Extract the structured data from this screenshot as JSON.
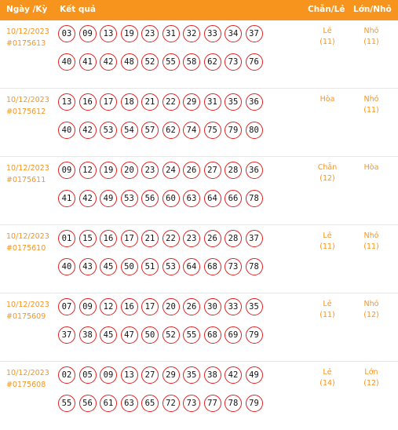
{
  "header": {
    "date_label": "Ngày /Kỳ",
    "result_label": "Kết quả",
    "even_odd_label": "Chẵn/Lẻ",
    "big_small_label": "Lớn/Nhỏ"
  },
  "rows": [
    {
      "date": "10/12/2023",
      "draw": "#0175613",
      "numbers_1": [
        "03",
        "09",
        "13",
        "19",
        "23",
        "31",
        "32",
        "33",
        "34",
        "37"
      ],
      "numbers_2": [
        "40",
        "41",
        "42",
        "48",
        "52",
        "55",
        "58",
        "62",
        "73",
        "76"
      ],
      "even_odd": "Lẻ",
      "even_odd_count": "(11)",
      "big_small": "Nhỏ",
      "big_small_count": "(11)"
    },
    {
      "date": "10/12/2023",
      "draw": "#0175612",
      "numbers_1": [
        "13",
        "16",
        "17",
        "18",
        "21",
        "22",
        "29",
        "31",
        "35",
        "36"
      ],
      "numbers_2": [
        "40",
        "42",
        "53",
        "54",
        "57",
        "62",
        "74",
        "75",
        "79",
        "80"
      ],
      "even_odd": "Hòa",
      "even_odd_count": "",
      "big_small": "Nhỏ",
      "big_small_count": "(11)"
    },
    {
      "date": "10/12/2023",
      "draw": "#0175611",
      "numbers_1": [
        "09",
        "12",
        "19",
        "20",
        "23",
        "24",
        "26",
        "27",
        "28",
        "36"
      ],
      "numbers_2": [
        "41",
        "42",
        "49",
        "53",
        "56",
        "60",
        "63",
        "64",
        "66",
        "78"
      ],
      "even_odd": "Chẵn",
      "even_odd_count": "(12)",
      "big_small": "Hòa",
      "big_small_count": ""
    },
    {
      "date": "10/12/2023",
      "draw": "#0175610",
      "numbers_1": [
        "01",
        "15",
        "16",
        "17",
        "21",
        "22",
        "23",
        "26",
        "28",
        "37"
      ],
      "numbers_2": [
        "40",
        "43",
        "45",
        "50",
        "51",
        "53",
        "64",
        "68",
        "73",
        "78"
      ],
      "even_odd": "Lẻ",
      "even_odd_count": "(11)",
      "big_small": "Nhỏ",
      "big_small_count": "(11)"
    },
    {
      "date": "10/12/2023",
      "draw": "#0175609",
      "numbers_1": [
        "07",
        "09",
        "12",
        "16",
        "17",
        "20",
        "26",
        "30",
        "33",
        "35"
      ],
      "numbers_2": [
        "37",
        "38",
        "45",
        "47",
        "50",
        "52",
        "55",
        "68",
        "69",
        "79"
      ],
      "even_odd": "Lẻ",
      "even_odd_count": "(11)",
      "big_small": "Nhỏ",
      "big_small_count": "(12)"
    },
    {
      "date": "10/12/2023",
      "draw": "#0175608",
      "numbers_1": [
        "02",
        "05",
        "09",
        "13",
        "27",
        "29",
        "35",
        "38",
        "42",
        "49"
      ],
      "numbers_2": [
        "55",
        "56",
        "61",
        "63",
        "65",
        "72",
        "73",
        "77",
        "78",
        "79"
      ],
      "even_odd": "Lẻ",
      "even_odd_count": "(14)",
      "big_small": "Lớn",
      "big_small_count": "(12)"
    }
  ],
  "colors": {
    "header_bg": "#f7941d",
    "accent_text": "#f7941d",
    "ball_border": "#e02020"
  }
}
